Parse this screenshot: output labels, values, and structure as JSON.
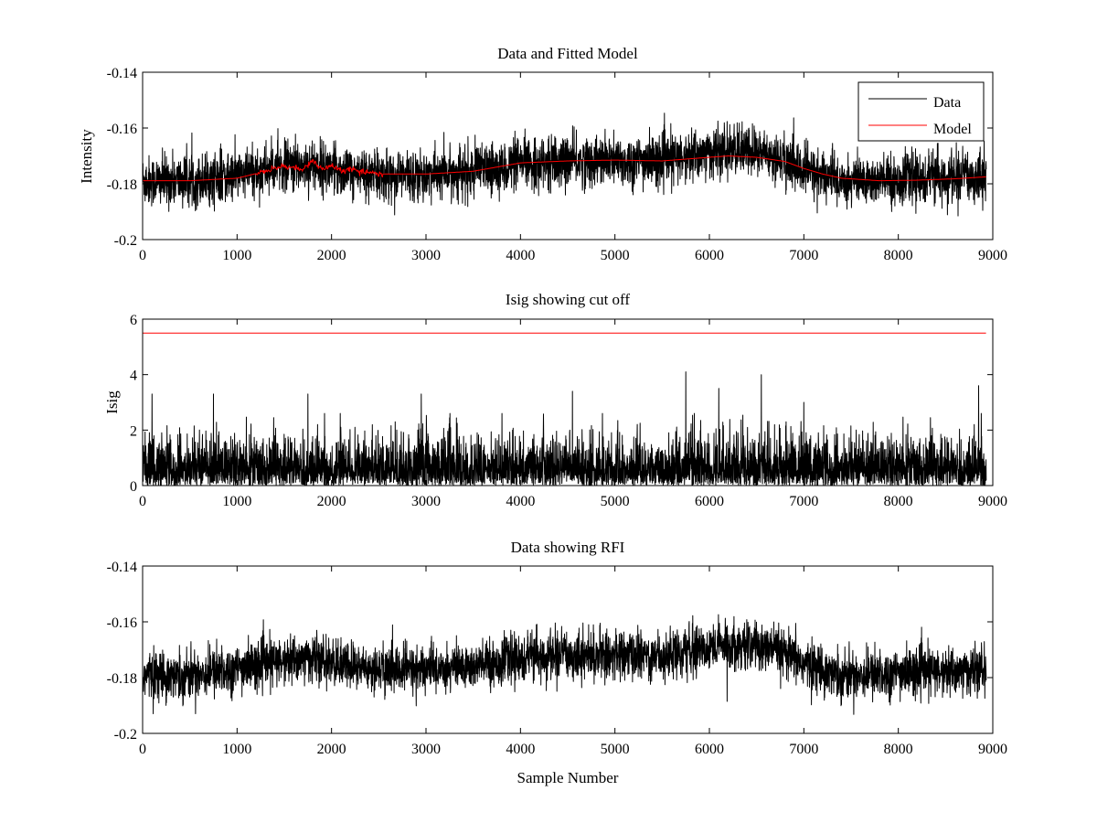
{
  "colors": {
    "data": "#000000",
    "model": "#ff0000",
    "axes": "#000000",
    "background": "#ffffff"
  },
  "chart_data": [
    {
      "type": "line",
      "title": "Data and Fitted Model",
      "xlabel": "",
      "ylabel": "Intensity",
      "xlim": [
        0,
        9000
      ],
      "ylim": [
        -0.2,
        -0.14
      ],
      "xticks": [
        0,
        1000,
        2000,
        3000,
        4000,
        5000,
        6000,
        7000,
        8000,
        9000
      ],
      "xtick_labels": [
        "0",
        "1000",
        "2000",
        "3000",
        "4000",
        "5000",
        "6000",
        "7000",
        "8000",
        "9000"
      ],
      "yticks": [
        -0.2,
        -0.18,
        -0.16,
        -0.14
      ],
      "ytick_labels": [
        "-0.2",
        "-0.18",
        "-0.16",
        "-0.14"
      ],
      "grid": false,
      "legend": {
        "placement": "top-right",
        "entries": [
          "Data",
          "Model"
        ]
      },
      "series": [
        {
          "name": "Data",
          "color": "#000000",
          "noise": 0.0045,
          "x": [
            0,
            500,
            1000,
            1500,
            1800,
            2000,
            2500,
            3000,
            3500,
            4000,
            4500,
            5000,
            5500,
            6000,
            6300,
            6600,
            6800,
            7000,
            7400,
            7800,
            8200,
            8600,
            8930
          ],
          "y": [
            -0.179,
            -0.179,
            -0.177,
            -0.174,
            -0.173,
            -0.175,
            -0.177,
            -0.177,
            -0.176,
            -0.173,
            -0.172,
            -0.172,
            -0.172,
            -0.169,
            -0.168,
            -0.169,
            -0.172,
            -0.175,
            -0.179,
            -0.179,
            -0.178,
            -0.178,
            -0.177
          ]
        },
        {
          "name": "Model",
          "color": "#ff0000",
          "x": [
            0,
            500,
            1000,
            1300,
            1500,
            1700,
            1800,
            1900,
            2000,
            2100,
            2200,
            2300,
            2400,
            2500,
            3000,
            3500,
            4000,
            4500,
            5000,
            5500,
            6000,
            6200,
            6500,
            6800,
            7000,
            7200,
            7400,
            7800,
            8200,
            8600,
            8930
          ],
          "y": [
            -0.1789,
            -0.1789,
            -0.178,
            -0.1755,
            -0.1735,
            -0.175,
            -0.1715,
            -0.175,
            -0.1735,
            -0.1755,
            -0.1745,
            -0.176,
            -0.1755,
            -0.1765,
            -0.1765,
            -0.1755,
            -0.1725,
            -0.1718,
            -0.1715,
            -0.1718,
            -0.1705,
            -0.17,
            -0.1705,
            -0.172,
            -0.1745,
            -0.1765,
            -0.178,
            -0.1789,
            -0.1787,
            -0.1782,
            -0.1775
          ]
        }
      ]
    },
    {
      "type": "line",
      "title": "Isig showing cut off",
      "xlabel": "",
      "ylabel": "Isig",
      "xlim": [
        0,
        9000
      ],
      "ylim": [
        0,
        6
      ],
      "xticks": [
        0,
        1000,
        2000,
        3000,
        4000,
        5000,
        6000,
        7000,
        8000,
        9000
      ],
      "xtick_labels": [
        "0",
        "1000",
        "2000",
        "3000",
        "4000",
        "5000",
        "6000",
        "7000",
        "8000",
        "9000"
      ],
      "yticks": [
        0,
        2,
        4,
        6
      ],
      "ytick_labels": [
        "0",
        "2",
        "4",
        "6"
      ],
      "grid": false,
      "series": [
        {
          "color": "#000000",
          "typical_max": 2.0,
          "x_end": 8930,
          "peaks": [
            [
              100,
              3.3
            ],
            [
              750,
              3.3
            ],
            [
              1750,
              3.3
            ],
            [
              2950,
              3.3
            ],
            [
              4550,
              3.4
            ],
            [
              5750,
              4.1
            ],
            [
              6100,
              3.5
            ],
            [
              6550,
              4.0
            ],
            [
              7000,
              3.0
            ],
            [
              8850,
              3.6
            ]
          ]
        },
        {
          "color": "#ff0000",
          "x": [
            0,
            8930
          ],
          "y": [
            5.5,
            5.5
          ]
        }
      ]
    },
    {
      "type": "line",
      "title": "Data showing RFI",
      "xlabel": "Sample Number",
      "ylabel": "",
      "xlim": [
        0,
        9000
      ],
      "ylim": [
        -0.2,
        -0.14
      ],
      "xticks": [
        0,
        1000,
        2000,
        3000,
        4000,
        5000,
        6000,
        7000,
        8000,
        9000
      ],
      "xtick_labels": [
        "0",
        "1000",
        "2000",
        "3000",
        "4000",
        "5000",
        "6000",
        "7000",
        "8000",
        "9000"
      ],
      "yticks": [
        -0.2,
        -0.18,
        -0.16,
        -0.14
      ],
      "ytick_labels": [
        "-0.2",
        "-0.18",
        "-0.16",
        "-0.14"
      ],
      "grid": false,
      "series": [
        {
          "color": "#000000",
          "noise": 0.0042,
          "x": [
            0,
            500,
            1000,
            1500,
            1800,
            2000,
            2500,
            3000,
            3500,
            4000,
            4500,
            5000,
            5500,
            6000,
            6300,
            6600,
            6800,
            7000,
            7400,
            7800,
            8200,
            8600,
            8930
          ],
          "y": [
            -0.179,
            -0.179,
            -0.177,
            -0.174,
            -0.173,
            -0.175,
            -0.177,
            -0.177,
            -0.176,
            -0.173,
            -0.172,
            -0.172,
            -0.172,
            -0.169,
            -0.168,
            -0.169,
            -0.172,
            -0.175,
            -0.179,
            -0.179,
            -0.178,
            -0.178,
            -0.177
          ]
        }
      ]
    }
  ]
}
